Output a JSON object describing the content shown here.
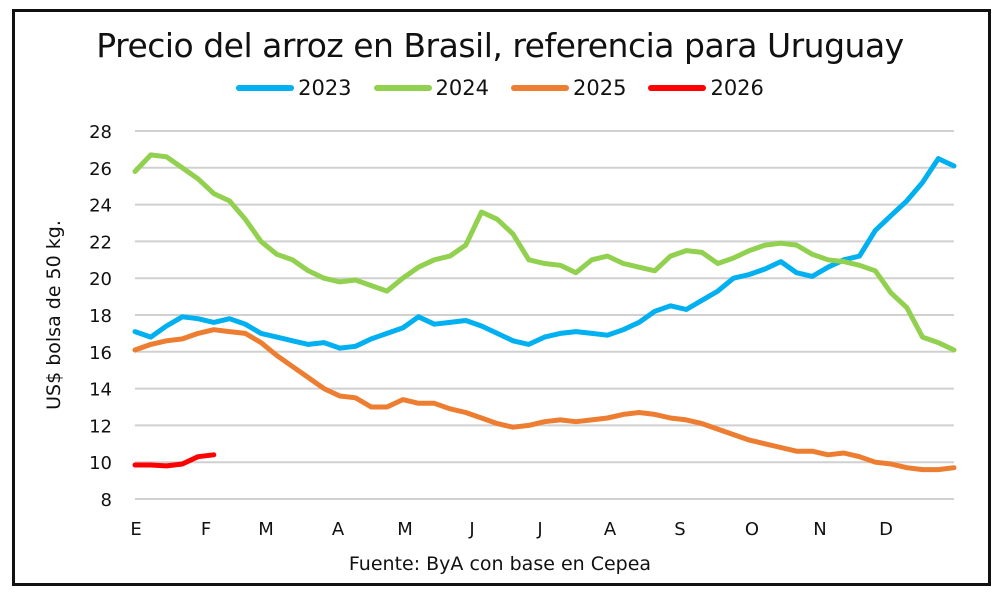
{
  "chart_data": {
    "type": "line",
    "title": "Precio del arroz en Brasil, referencia para Uruguay",
    "xlabel": "",
    "ylabel": "US$ bolsa de 50 kg.",
    "source": "Fuente: ByA con base en Cepea",
    "ylim": [
      8,
      28
    ],
    "yticks": [
      8,
      10,
      12,
      14,
      16,
      18,
      20,
      22,
      24,
      26,
      28
    ],
    "x_tick_labels": [
      "E",
      "F",
      "M",
      "A",
      "M",
      "J",
      "J",
      "A",
      "S",
      "O",
      "N",
      "D"
    ],
    "x_unit": "week of year (0-52)",
    "grid": true,
    "legend_position": "top",
    "series": [
      {
        "name": "2023",
        "color": "#00B0F0",
        "values": [
          17.1,
          16.8,
          17.4,
          17.9,
          17.8,
          17.6,
          17.8,
          17.5,
          17.0,
          16.8,
          16.6,
          16.4,
          16.5,
          16.2,
          16.3,
          16.7,
          17.0,
          17.3,
          17.9,
          17.5,
          17.6,
          17.7,
          17.4,
          17.0,
          16.6,
          16.4,
          16.8,
          17.0,
          17.1,
          17.0,
          16.9,
          17.2,
          17.6,
          18.2,
          18.5,
          18.3,
          18.8,
          19.3,
          20.0,
          20.2,
          20.5,
          20.9,
          20.3,
          20.1,
          20.6,
          21.0,
          21.2,
          22.6,
          23.4,
          24.2,
          25.2,
          26.5,
          26.1
        ]
      },
      {
        "name": "2024",
        "color": "#92D050",
        "values": [
          25.8,
          26.7,
          26.6,
          26.0,
          25.4,
          24.6,
          24.2,
          23.2,
          22.0,
          21.3,
          21.0,
          20.4,
          20.0,
          19.8,
          19.9,
          19.6,
          19.3,
          20.0,
          20.6,
          21.0,
          21.2,
          21.8,
          23.6,
          23.2,
          22.4,
          21.0,
          20.8,
          20.7,
          20.3,
          21.0,
          21.2,
          20.8,
          20.6,
          20.4,
          21.2,
          21.5,
          21.4,
          20.8,
          21.1,
          21.5,
          21.8,
          21.9,
          21.8,
          21.3,
          21.0,
          20.9,
          20.7,
          20.4,
          19.2,
          18.4,
          16.8,
          16.5,
          16.1
        ]
      },
      {
        "name": "2025",
        "color": "#ED7D31",
        "values": [
          16.1,
          16.4,
          16.6,
          16.7,
          17.0,
          17.2,
          17.1,
          17.0,
          16.5,
          15.8,
          15.2,
          14.6,
          14.0,
          13.6,
          13.5,
          13.0,
          13.0,
          13.4,
          13.2,
          13.2,
          12.9,
          12.7,
          12.4,
          12.1,
          11.9,
          12.0,
          12.2,
          12.3,
          12.2,
          12.3,
          12.4,
          12.6,
          12.7,
          12.6,
          12.4,
          12.3,
          12.1,
          11.8,
          11.5,
          11.2,
          11.0,
          10.8,
          10.6,
          10.6,
          10.4,
          10.5,
          10.3,
          10.0,
          9.9,
          9.7,
          9.6,
          9.6,
          9.7
        ]
      },
      {
        "name": "2026",
        "color": "#FF0000",
        "values": [
          9.85,
          9.85,
          9.8,
          9.9,
          10.3,
          10.4
        ]
      }
    ]
  }
}
